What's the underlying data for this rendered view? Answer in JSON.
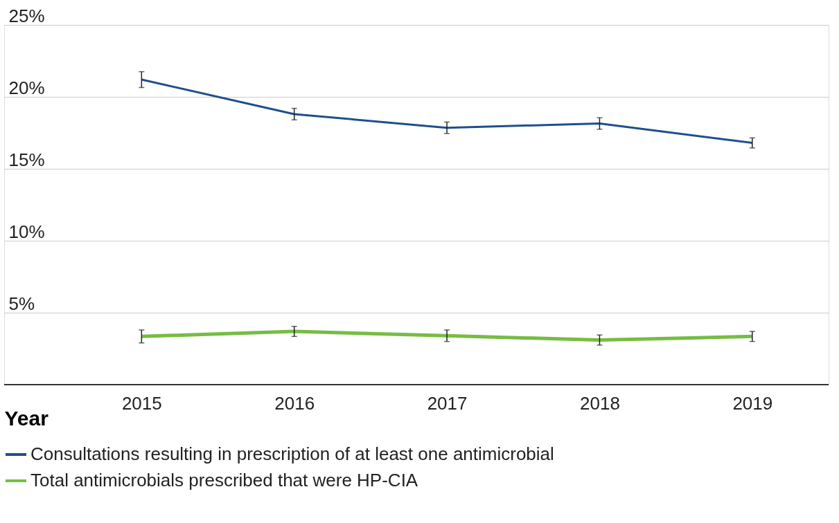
{
  "chart_data": {
    "type": "line",
    "xlabel": "Year",
    "categories": [
      "2015",
      "2016",
      "2017",
      "2018",
      "2019"
    ],
    "series": [
      {
        "name": "Consultations resulting in prescription of at least one antimicrobial",
        "color": "#1f4e8c",
        "values": [
          21.2,
          18.8,
          17.85,
          18.15,
          16.8
        ],
        "errors": [
          0.55,
          0.4,
          0.4,
          0.4,
          0.35
        ]
      },
      {
        "name": "Total antimicrobials prescribed that were HP-CIA",
        "color": "#76bd43",
        "values": [
          3.35,
          3.7,
          3.4,
          3.1,
          3.35
        ],
        "errors": [
          0.45,
          0.35,
          0.4,
          0.35,
          0.35
        ]
      }
    ],
    "ylim": [
      0,
      25
    ],
    "yticks": [
      {
        "value": 0,
        "label": null
      },
      {
        "value": 5,
        "label": "5%"
      },
      {
        "value": 10,
        "label": "10%"
      },
      {
        "value": 15,
        "label": "15%"
      },
      {
        "value": 20,
        "label": "20%"
      },
      {
        "value": 25,
        "label": "25%"
      }
    ],
    "grid": "y",
    "legend": "bottom",
    "marker": "none",
    "line_style": "solid"
  }
}
